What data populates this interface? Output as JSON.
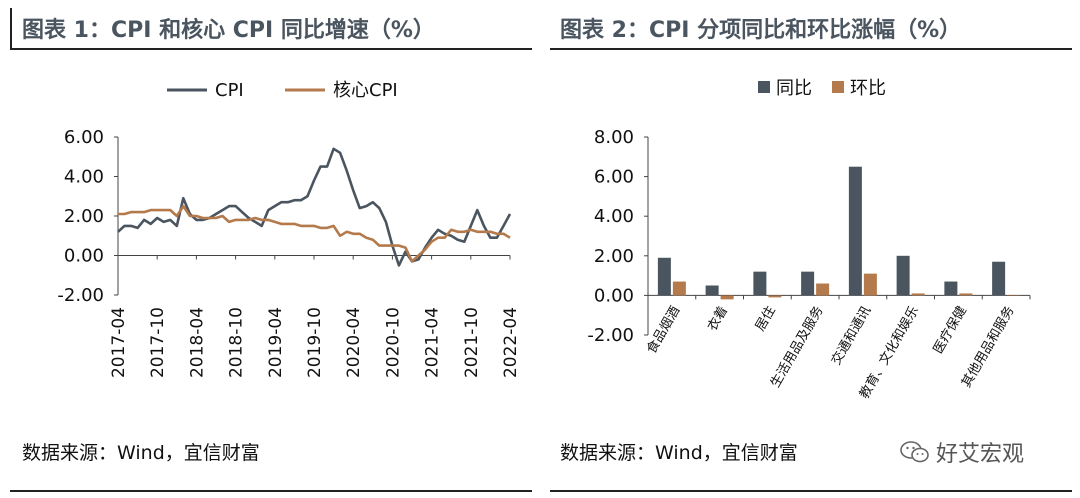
{
  "chart1": {
    "title": "图表 1：CPI 和核心 CPI 同比增速（%）",
    "source": "数据来源：Wind，宜信财富",
    "chart_data": {
      "type": "line",
      "x": [
        "2017-04",
        "2017-05",
        "2017-06",
        "2017-07",
        "2017-08",
        "2017-09",
        "2017-10",
        "2017-11",
        "2017-12",
        "2018-01",
        "2018-02",
        "2018-03",
        "2018-04",
        "2018-05",
        "2018-06",
        "2018-07",
        "2018-08",
        "2018-09",
        "2018-10",
        "2018-11",
        "2018-12",
        "2019-01",
        "2019-02",
        "2019-03",
        "2019-04",
        "2019-05",
        "2019-06",
        "2019-07",
        "2019-08",
        "2019-09",
        "2019-10",
        "2019-11",
        "2019-12",
        "2020-01",
        "2020-02",
        "2020-03",
        "2020-04",
        "2020-05",
        "2020-06",
        "2020-07",
        "2020-08",
        "2020-09",
        "2020-10",
        "2020-11",
        "2020-12",
        "2021-01",
        "2021-02",
        "2021-03",
        "2021-04",
        "2021-05",
        "2021-06",
        "2021-07",
        "2021-08",
        "2021-09",
        "2021-10",
        "2021-11",
        "2021-12",
        "2022-01",
        "2022-02",
        "2022-03",
        "2022-04"
      ],
      "xticks": [
        "2017-04",
        "2017-10",
        "2018-04",
        "2018-10",
        "2019-04",
        "2019-10",
        "2020-04",
        "2020-10",
        "2021-04",
        "2021-10",
        "2022-04"
      ],
      "series": [
        {
          "name": "CPI",
          "color": "#4a5560",
          "values": [
            1.2,
            1.5,
            1.5,
            1.4,
            1.8,
            1.6,
            1.9,
            1.7,
            1.8,
            1.5,
            2.9,
            2.1,
            1.8,
            1.8,
            1.9,
            2.1,
            2.3,
            2.5,
            2.5,
            2.2,
            1.9,
            1.7,
            1.5,
            2.3,
            2.5,
            2.7,
            2.7,
            2.8,
            2.8,
            3.0,
            3.8,
            4.5,
            4.5,
            5.4,
            5.2,
            4.3,
            3.3,
            2.4,
            2.5,
            2.7,
            2.4,
            1.7,
            0.5,
            -0.5,
            0.2,
            -0.3,
            -0.2,
            0.4,
            0.9,
            1.3,
            1.1,
            1.0,
            0.8,
            0.7,
            1.5,
            2.3,
            1.5,
            0.9,
            0.9,
            1.5,
            2.1
          ]
        },
        {
          "name": "核心CPI",
          "color": "#b47a4c",
          "values": [
            2.1,
            2.1,
            2.2,
            2.2,
            2.2,
            2.3,
            2.3,
            2.3,
            2.3,
            2.0,
            2.5,
            2.0,
            2.0,
            1.9,
            1.9,
            1.9,
            2.0,
            1.7,
            1.8,
            1.8,
            1.8,
            1.9,
            1.8,
            1.8,
            1.7,
            1.6,
            1.6,
            1.6,
            1.5,
            1.5,
            1.5,
            1.4,
            1.4,
            1.5,
            1.0,
            1.2,
            1.1,
            1.1,
            0.9,
            0.8,
            0.5,
            0.5,
            0.5,
            0.5,
            0.4,
            -0.3,
            0.0,
            0.3,
            0.7,
            0.9,
            0.9,
            1.3,
            1.2,
            1.2,
            1.3,
            1.2,
            1.2,
            1.2,
            1.1,
            1.1,
            0.9
          ]
        }
      ],
      "ylim": [
        -2,
        6
      ],
      "yticks": [
        "6.00",
        "4.00",
        "2.00",
        "0.00",
        "-2.00"
      ],
      "legend_position": "top"
    }
  },
  "chart2": {
    "title": "图表 2：CPI 分项同比和环比涨幅（%）",
    "source": "数据来源：Wind，宜信财富",
    "chart_data": {
      "type": "bar",
      "categories": [
        "食品烟酒",
        "衣着",
        "居住",
        "生活用品及服务",
        "交通和通讯",
        "教育、文化和娱乐",
        "医疗保健",
        "其他用品和服务"
      ],
      "series": [
        {
          "name": "同比",
          "color": "#4a5560",
          "values": [
            1.9,
            0.5,
            1.2,
            1.2,
            6.5,
            2.0,
            0.7,
            1.7
          ]
        },
        {
          "name": "环比",
          "color": "#b47a4c",
          "values": [
            0.7,
            -0.2,
            -0.1,
            0.6,
            1.1,
            0.1,
            0.1,
            0.0
          ]
        }
      ],
      "ylim": [
        -2,
        8
      ],
      "yticks": [
        "8.00",
        "6.00",
        "4.00",
        "2.00",
        "0.00",
        "-2.00"
      ],
      "legend_position": "top"
    }
  },
  "watermark": {
    "text": "好艾宏观",
    "icon": "wechat-icon"
  }
}
